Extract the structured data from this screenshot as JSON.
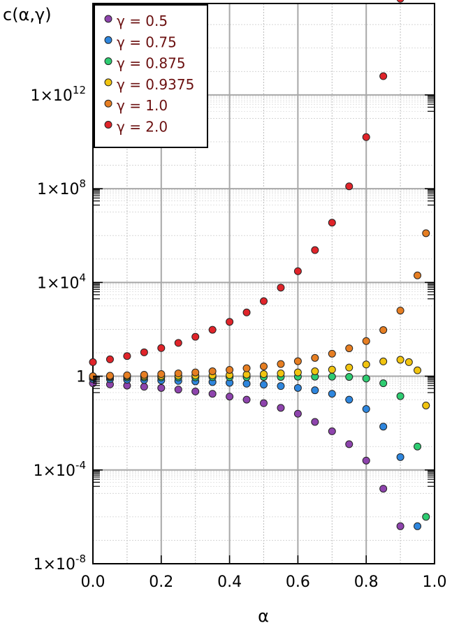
{
  "chart_data": {
    "type": "scatter",
    "title": "",
    "xlabel": "α",
    "ylabel": "c(α,γ)",
    "xlim": [
      0,
      1
    ],
    "y_scale": "log10",
    "ylim_log10": [
      -8,
      15.9
    ],
    "grid": true,
    "legend_position": "top-left",
    "x_ticks": [
      {
        "value": 0.0,
        "label": "0.0"
      },
      {
        "value": 0.2,
        "label": "0.2"
      },
      {
        "value": 0.4,
        "label": "0.4"
      },
      {
        "value": 0.6,
        "label": "0.6"
      },
      {
        "value": 0.8,
        "label": "0.8"
      },
      {
        "value": 1.0,
        "label": "1.0"
      }
    ],
    "y_ticks": [
      {
        "log10": -8,
        "base": "1×10",
        "exp": "-8"
      },
      {
        "log10": -4,
        "base": "1×10",
        "exp": "-4"
      },
      {
        "log10": 0,
        "base": "1",
        "exp": ""
      },
      {
        "log10": 4,
        "base": "1×10",
        "exp": "4"
      },
      {
        "log10": 8,
        "base": "1×10",
        "exp": "8"
      },
      {
        "log10": 12,
        "base": "1×10",
        "exp": "12"
      }
    ],
    "series": [
      {
        "name": "γ = 0.5",
        "color": "#8e44ad",
        "points": [
          [
            0.0,
            -0.3
          ],
          [
            0.05,
            -0.35
          ],
          [
            0.1,
            -0.4
          ],
          [
            0.15,
            -0.45
          ],
          [
            0.2,
            -0.5
          ],
          [
            0.25,
            -0.57
          ],
          [
            0.3,
            -0.65
          ],
          [
            0.35,
            -0.75
          ],
          [
            0.4,
            -0.87
          ],
          [
            0.45,
            -1.0
          ],
          [
            0.5,
            -1.15
          ],
          [
            0.55,
            -1.35
          ],
          [
            0.6,
            -1.6
          ],
          [
            0.65,
            -1.95
          ],
          [
            0.7,
            -2.35
          ],
          [
            0.75,
            -2.9
          ],
          [
            0.8,
            -3.6
          ],
          [
            0.85,
            -4.8
          ],
          [
            0.9,
            -6.4
          ]
        ]
      },
      {
        "name": "γ = 0.75",
        "color": "#2e86de",
        "points": [
          [
            0.0,
            -0.12
          ],
          [
            0.05,
            -0.13
          ],
          [
            0.1,
            -0.15
          ],
          [
            0.15,
            -0.16
          ],
          [
            0.2,
            -0.18
          ],
          [
            0.25,
            -0.2
          ],
          [
            0.3,
            -0.22
          ],
          [
            0.35,
            -0.25
          ],
          [
            0.4,
            -0.28
          ],
          [
            0.45,
            -0.32
          ],
          [
            0.5,
            -0.36
          ],
          [
            0.55,
            -0.42
          ],
          [
            0.6,
            -0.5
          ],
          [
            0.65,
            -0.6
          ],
          [
            0.7,
            -0.75
          ],
          [
            0.75,
            -1.0
          ],
          [
            0.8,
            -1.4
          ],
          [
            0.85,
            -2.15
          ],
          [
            0.9,
            -3.45
          ],
          [
            0.95,
            -6.4
          ]
        ]
      },
      {
        "name": "γ = 0.875",
        "color": "#2ecc71",
        "points": [
          [
            0.0,
            -0.05
          ],
          [
            0.05,
            -0.05
          ],
          [
            0.1,
            -0.05
          ],
          [
            0.15,
            -0.05
          ],
          [
            0.2,
            -0.05
          ],
          [
            0.25,
            -0.05
          ],
          [
            0.3,
            -0.05
          ],
          [
            0.35,
            -0.04
          ],
          [
            0.4,
            -0.04
          ],
          [
            0.45,
            -0.04
          ],
          [
            0.5,
            -0.03
          ],
          [
            0.55,
            -0.03
          ],
          [
            0.6,
            -0.02
          ],
          [
            0.65,
            -0.02
          ],
          [
            0.7,
            -0.02
          ],
          [
            0.75,
            -0.03
          ],
          [
            0.8,
            -0.1
          ],
          [
            0.85,
            -0.3
          ],
          [
            0.9,
            -0.85
          ],
          [
            0.95,
            -3.0
          ],
          [
            0.975,
            -6.0
          ]
        ]
      },
      {
        "name": "γ = 0.9375",
        "color": "#f1c40f",
        "points": [
          [
            0.0,
            -0.02
          ],
          [
            0.05,
            -0.01
          ],
          [
            0.1,
            0.0
          ],
          [
            0.15,
            0.0
          ],
          [
            0.2,
            0.01
          ],
          [
            0.25,
            0.02
          ],
          [
            0.3,
            0.03
          ],
          [
            0.35,
            0.04
          ],
          [
            0.4,
            0.05
          ],
          [
            0.45,
            0.07
          ],
          [
            0.5,
            0.09
          ],
          [
            0.55,
            0.12
          ],
          [
            0.6,
            0.16
          ],
          [
            0.65,
            0.21
          ],
          [
            0.7,
            0.28
          ],
          [
            0.75,
            0.37
          ],
          [
            0.8,
            0.5
          ],
          [
            0.85,
            0.63
          ],
          [
            0.9,
            0.7
          ],
          [
            0.925,
            0.6
          ],
          [
            0.95,
            0.25
          ],
          [
            0.975,
            -1.25
          ]
        ]
      },
      {
        "name": "γ = 1.0",
        "color": "#e67e22",
        "points": [
          [
            0.0,
            0.0
          ],
          [
            0.05,
            0.02
          ],
          [
            0.1,
            0.04
          ],
          [
            0.15,
            0.06
          ],
          [
            0.2,
            0.09
          ],
          [
            0.25,
            0.12
          ],
          [
            0.3,
            0.16
          ],
          [
            0.35,
            0.21
          ],
          [
            0.4,
            0.27
          ],
          [
            0.45,
            0.34
          ],
          [
            0.5,
            0.42
          ],
          [
            0.55,
            0.52
          ],
          [
            0.6,
            0.64
          ],
          [
            0.65,
            0.78
          ],
          [
            0.7,
            0.96
          ],
          [
            0.75,
            1.19
          ],
          [
            0.8,
            1.5
          ],
          [
            0.85,
            1.97
          ],
          [
            0.9,
            2.8
          ],
          [
            0.95,
            4.3
          ],
          [
            0.975,
            6.1
          ]
        ]
      },
      {
        "name": "γ = 2.0",
        "color": "#e0242a",
        "points": [
          [
            0.0,
            0.6
          ],
          [
            0.05,
            0.72
          ],
          [
            0.1,
            0.86
          ],
          [
            0.15,
            1.02
          ],
          [
            0.2,
            1.2
          ],
          [
            0.25,
            1.42
          ],
          [
            0.3,
            1.68
          ],
          [
            0.35,
            1.98
          ],
          [
            0.4,
            2.32
          ],
          [
            0.45,
            2.72
          ],
          [
            0.5,
            3.2
          ],
          [
            0.55,
            3.78
          ],
          [
            0.6,
            4.48
          ],
          [
            0.65,
            5.38
          ],
          [
            0.7,
            6.55
          ],
          [
            0.75,
            8.1
          ],
          [
            0.8,
            10.2
          ],
          [
            0.85,
            12.8
          ],
          [
            0.9,
            16.1
          ]
        ]
      }
    ]
  }
}
